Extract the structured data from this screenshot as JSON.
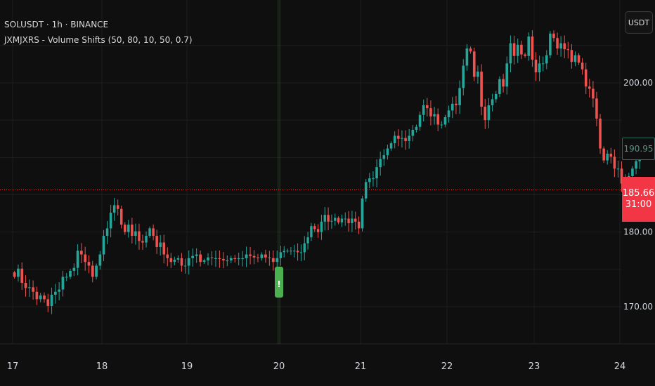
{
  "header": {
    "symbol_line": "SOLUSDT · 1h · BINANCE",
    "indicator_line": "JXMJXRS - Volume Shifts (50, 80, 10, 50, 0.7)"
  },
  "currency_button": "USDT",
  "price_tags": {
    "last_value": "190.95",
    "current_price": "185.66",
    "countdown": "31:00"
  },
  "colors": {
    "background": "#0f0f0f",
    "bull": "#26a69a",
    "bear": "#ef5350",
    "signal": "#4caf50",
    "current_price": "#f23645"
  },
  "chart_data": {
    "type": "candlestick",
    "x_axis": {
      "ticks": [
        "17",
        "18",
        "19",
        "20",
        "21",
        "22",
        "23",
        "24"
      ]
    },
    "y_axis": {
      "ticks": [
        170,
        180,
        200
      ],
      "tick_labels": [
        "170.00",
        "180.00",
        "200.00"
      ],
      "range": [
        166,
        212
      ]
    },
    "grid": true,
    "current_price_line": 185.66,
    "highlighted_day": "20",
    "signal_marker": {
      "day": "20",
      "symbol": "!"
    },
    "series": [
      {
        "day": "17",
        "close": [
          174.0,
          175.1,
          173.2,
          172.5,
          172.6,
          172.0,
          171.0,
          171.5,
          171.0,
          170.1,
          171.6,
          172.0,
          172.3,
          174.0,
          174.0,
          174.8,
          175.2,
          177.5,
          177.0,
          176.0,
          175.5,
          174.0,
          175.5,
          177.0
        ]
      },
      {
        "day": "18",
        "close": [
          179.5,
          180.5,
          182.6,
          183.6,
          183.1,
          181.0,
          180.0,
          181.0,
          179.5,
          180.1,
          178.8,
          178.6,
          179.5,
          180.5,
          179.5,
          178.0,
          178.6,
          177.0,
          176.5,
          176.0,
          176.3,
          176.5,
          175.5,
          175.5
        ]
      },
      {
        "day": "19",
        "close": [
          176.5,
          176.8,
          177.0,
          176.0,
          176.2,
          176.6,
          176.5,
          176.5,
          176.4,
          176.2,
          176.2,
          176.5,
          176.4,
          176.5,
          176.5,
          177.0,
          176.8,
          176.6,
          176.5,
          177.0,
          176.6,
          176.5,
          176.0,
          176.5
        ]
      },
      {
        "day": "20",
        "close": [
          177.3,
          177.5,
          177.5,
          177.5,
          177.5,
          177.3,
          177.3,
          178.5,
          179.3,
          180.8,
          180.4,
          180.0,
          181.4,
          182.3,
          181.4,
          181.5,
          181.9,
          181.3,
          181.8,
          181.8,
          181.2,
          181.8,
          181.4,
          180.5
        ]
      },
      {
        "day": "21",
        "close": [
          184.5,
          186.7,
          187.2,
          187.2,
          188.7,
          189.8,
          190.3,
          191.2,
          191.9,
          192.9,
          192.5,
          192.6,
          192.2,
          192.9,
          193.7,
          194.1,
          195.7,
          197.0,
          196.6,
          195.5,
          195.8,
          194.4,
          194.4,
          195.4
        ]
      },
      {
        "day": "22",
        "close": [
          196.3,
          197.2,
          197.0,
          199.3,
          202.3,
          204.6,
          204.2,
          200.8,
          201.5,
          196.8,
          195.0,
          197.0,
          197.8,
          198.5,
          200.5,
          199.5,
          202.6,
          205.3,
          203.6,
          205.1,
          203.8,
          203.6,
          206.2,
          203.1
        ]
      },
      {
        "day": "23",
        "close": [
          201.4,
          202.6,
          202.6,
          203.7,
          206.6,
          206.0,
          204.6,
          205.3,
          204.5,
          204.4,
          202.8,
          203.7,
          202.7,
          201.8,
          199.5,
          199.2,
          197.9,
          195.2,
          191.2,
          189.6,
          190.5,
          190.1,
          188.5,
          188.5
        ]
      },
      {
        "day": "24",
        "close": [
          186.5,
          187.0,
          187.5,
          188.5,
          189.5,
          190.95
        ]
      }
    ]
  }
}
